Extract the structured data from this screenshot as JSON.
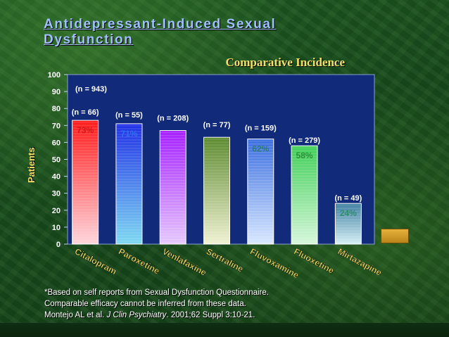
{
  "title_line1": "Antidepressant-Induced Sexual",
  "title_line2": "Dysfunction",
  "footnote": {
    "line1": "*Based on self reports from Sexual Dysfunction Questionnaire.",
    "line2": "Comparable efficacy cannot be inferred from these data.",
    "line3_prefix": "Montejo AL et al. ",
    "line3_journal": "J Clin Psychiatry",
    "line3_suffix": ". 2001;62 Suppl 3:10-21."
  },
  "chart_data": {
    "type": "bar",
    "title": "Comparative Incidence",
    "ylabel": "Patients",
    "xlabel": "",
    "ylim": [
      0,
      100
    ],
    "yticks": [
      0,
      10,
      20,
      30,
      40,
      50,
      60,
      70,
      80,
      90,
      100
    ],
    "overall_n_label": "(n = 943)",
    "categories": [
      "Citalopram",
      "Paroxetine",
      "Venlafaxine",
      "Sertraline",
      "Fluvoxamine",
      "Fluoxetine",
      "Mirtazapine"
    ],
    "values": [
      73,
      71,
      67,
      63,
      62,
      58,
      24
    ],
    "value_labels": [
      "73%",
      "71%",
      "",
      "",
      "62%",
      "58%",
      "24%"
    ],
    "n_labels": [
      "(n = 66)",
      "(n = 55)",
      "(n = 208)",
      "(n = 77)",
      "(n = 159)",
      "(n = 279)",
      "(n = 49)"
    ],
    "colors": {
      "top": [
        "#ff1a1a",
        "#1f2fe6",
        "#a620ff",
        "#5c8a2e",
        "#3b6fe0",
        "#3fcf57",
        "#3e7fa0"
      ],
      "bottom": [
        "#ffd6dc",
        "#7fd9f2",
        "#e6c9ff",
        "#f0f2d2",
        "#d9e8ff",
        "#d6f7da",
        "#d6f0f6"
      ],
      "value_label": [
        "#cc1a1a",
        "#2f6ff0",
        "#7a20c0",
        "#3c6a22",
        "#2e7a7a",
        "#2e8f3a",
        "#2e8f6a"
      ]
    },
    "plot_bg": "#112a7a",
    "grid": false,
    "legend": "none"
  }
}
